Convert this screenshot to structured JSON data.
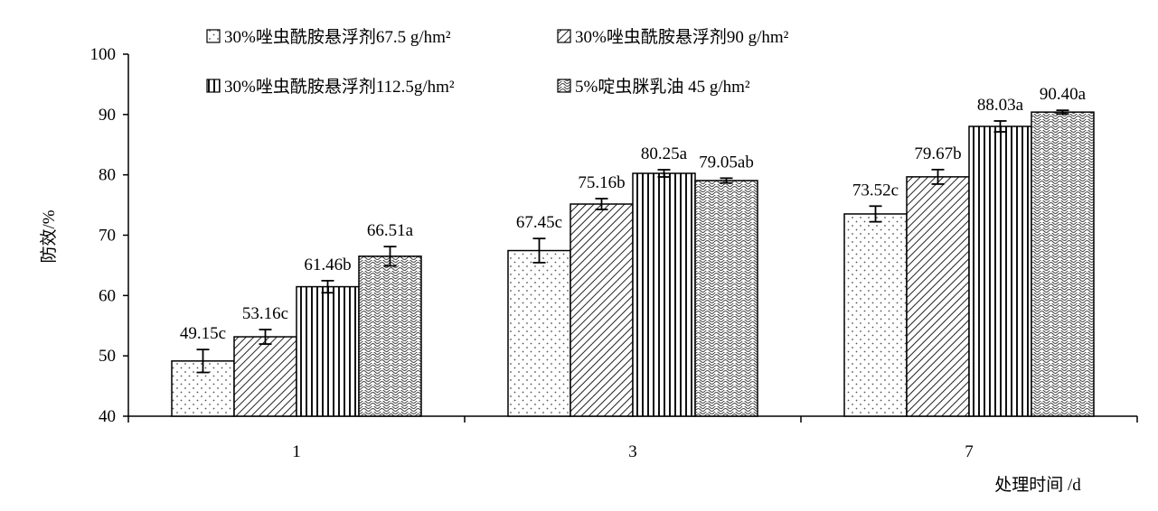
{
  "chart_data": {
    "type": "bar",
    "title": "",
    "xlabel": "处理时间 /d",
    "ylabel": "防效/%",
    "ylim": [
      40,
      100
    ],
    "yticks": [
      40,
      50,
      60,
      70,
      80,
      90,
      100
    ],
    "categories": [
      "1",
      "3",
      "7"
    ],
    "grid": false,
    "legend_position": "top",
    "series": [
      {
        "name": "30%唑虫酰胺悬浮剂67.5 g/hm²",
        "pattern": "dots",
        "values": [
          49.15,
          67.45,
          73.52
        ],
        "errors": [
          1.9,
          2.0,
          1.3
        ],
        "labels": [
          "49.15c",
          "67.45c",
          "73.52c"
        ]
      },
      {
        "name": "30%唑虫酰胺悬浮剂90 g/hm²",
        "pattern": "diagonal",
        "values": [
          53.16,
          75.16,
          79.67
        ],
        "errors": [
          1.2,
          0.9,
          1.2
        ],
        "labels": [
          "53.16c",
          "75.16b",
          "79.67b"
        ]
      },
      {
        "name": "30%唑虫酰胺悬浮剂112.5g/hm²",
        "pattern": "vertical",
        "values": [
          61.46,
          80.25,
          88.03
        ],
        "errors": [
          1.0,
          0.6,
          0.9
        ],
        "labels": [
          "61.46b",
          "80.25a",
          "88.03a"
        ]
      },
      {
        "name": "5%啶虫脒乳油 45 g/hm²",
        "pattern": "wave",
        "values": [
          66.51,
          79.05,
          90.4
        ],
        "errors": [
          1.6,
          0.4,
          0.3
        ],
        "labels": [
          "66.51a",
          "79.05ab",
          "90.40a"
        ]
      }
    ]
  }
}
